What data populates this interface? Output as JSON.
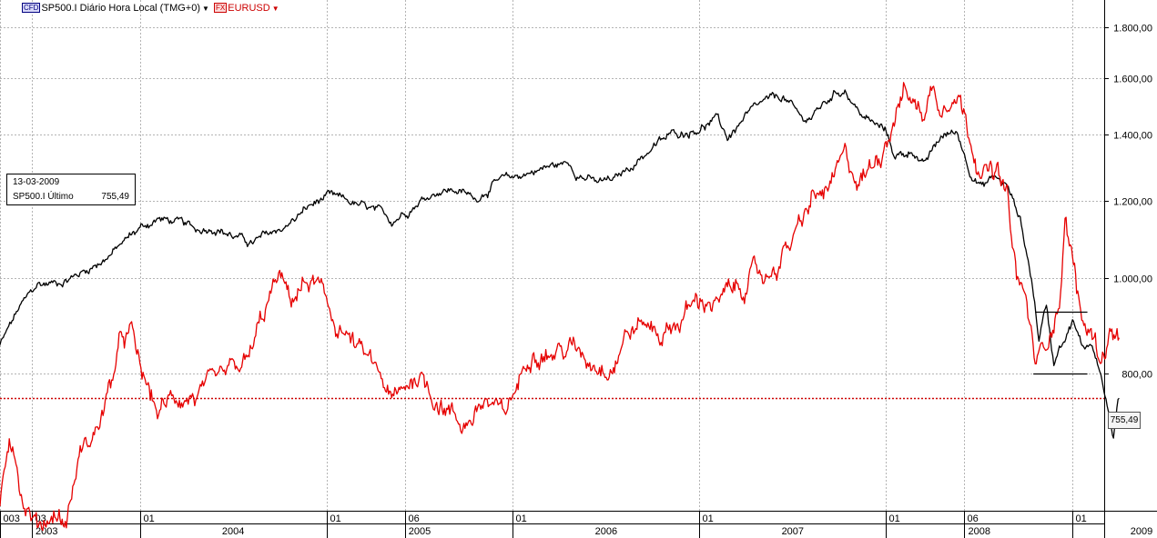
{
  "legend": {
    "series1": {
      "badge": "CFD",
      "label": "SP500.I Diário Hora Local (TMG+0)",
      "color": "#000000"
    },
    "series2": {
      "badge": "FX",
      "label": "EURUSD",
      "color": "#e00000"
    }
  },
  "infobox": {
    "date": "13-03-2009",
    "label": "SP500.I Último",
    "value": "755,49"
  },
  "price_tag": "755,49",
  "colors": {
    "sp500": "#000000",
    "eurusd": "#e60000",
    "grid": "#b4b4b4",
    "ref_line": "#cc0000"
  },
  "chart_data": {
    "type": "line",
    "y_axis": {
      "scale": "log",
      "range": [
        580,
        1920
      ],
      "ticks": [
        {
          "v": 800,
          "label": "800,00"
        },
        {
          "v": 1000,
          "label": "1.000,00"
        },
        {
          "v": 1200,
          "label": "1.200,00"
        },
        {
          "v": 1400,
          "label": "1.400,00"
        },
        {
          "v": 1600,
          "label": "1.600,00"
        },
        {
          "v": 1800,
          "label": "1.800,00"
        }
      ]
    },
    "x_axis": {
      "range": [
        2003.25,
        2009.17
      ],
      "month_ticks": [
        {
          "t": 2003.25,
          "label": "003"
        },
        {
          "t": 2003.42,
          "label": "03"
        },
        {
          "t": 2004.0,
          "label": "01"
        },
        {
          "t": 2005.0,
          "label": "01"
        },
        {
          "t": 2005.42,
          "label": "06"
        },
        {
          "t": 2006.0,
          "label": "01"
        },
        {
          "t": 2007.0,
          "label": "01"
        },
        {
          "t": 2008.0,
          "label": "01"
        },
        {
          "t": 2008.42,
          "label": "06"
        },
        {
          "t": 2009.0,
          "label": "01"
        }
      ],
      "year_labels": [
        {
          "t": 2003.5,
          "label": "2003"
        },
        {
          "t": 2004.5,
          "label": "2004"
        },
        {
          "t": 2005.5,
          "label": "2005"
        },
        {
          "t": 2006.5,
          "label": "2006"
        },
        {
          "t": 2007.5,
          "label": "2007"
        },
        {
          "t": 2008.5,
          "label": "2008"
        },
        {
          "t": 2009.37,
          "label": "2009"
        }
      ]
    },
    "grid": true,
    "reference_line": {
      "value": 755.49,
      "style": "dotted"
    },
    "series": [
      {
        "name": "SP500.I",
        "points": [
          [
            2003.25,
            855
          ],
          [
            2003.35,
            930
          ],
          [
            2003.45,
            985
          ],
          [
            2003.55,
            990
          ],
          [
            2003.65,
            1005
          ],
          [
            2003.75,
            1030
          ],
          [
            2003.85,
            1060
          ],
          [
            2003.95,
            1105
          ],
          [
            2004.0,
            1125
          ],
          [
            2004.1,
            1150
          ],
          [
            2004.2,
            1140
          ],
          [
            2004.3,
            1120
          ],
          [
            2004.4,
            1130
          ],
          [
            2004.5,
            1105
          ],
          [
            2004.6,
            1085
          ],
          [
            2004.7,
            1110
          ],
          [
            2004.8,
            1135
          ],
          [
            2004.9,
            1180
          ],
          [
            2005.0,
            1210
          ],
          [
            2005.1,
            1200
          ],
          [
            2005.2,
            1180
          ],
          [
            2005.3,
            1160
          ],
          [
            2005.35,
            1145
          ],
          [
            2005.5,
            1200
          ],
          [
            2005.6,
            1230
          ],
          [
            2005.7,
            1230
          ],
          [
            2005.8,
            1205
          ],
          [
            2005.9,
            1250
          ],
          [
            2006.0,
            1265
          ],
          [
            2006.1,
            1285
          ],
          [
            2006.2,
            1300
          ],
          [
            2006.3,
            1310
          ],
          [
            2006.35,
            1280
          ],
          [
            2006.45,
            1250
          ],
          [
            2006.55,
            1260
          ],
          [
            2006.65,
            1310
          ],
          [
            2006.75,
            1360
          ],
          [
            2006.85,
            1400
          ],
          [
            2006.95,
            1415
          ],
          [
            2007.0,
            1425
          ],
          [
            2007.1,
            1450
          ],
          [
            2007.15,
            1390
          ],
          [
            2007.25,
            1460
          ],
          [
            2007.35,
            1510
          ],
          [
            2007.45,
            1530
          ],
          [
            2007.55,
            1450
          ],
          [
            2007.6,
            1460
          ],
          [
            2007.72,
            1540
          ],
          [
            2007.78,
            1560
          ],
          [
            2007.85,
            1480
          ],
          [
            2007.9,
            1450
          ],
          [
            2008.0,
            1410
          ],
          [
            2008.05,
            1330
          ],
          [
            2008.15,
            1350
          ],
          [
            2008.2,
            1300
          ],
          [
            2008.3,
            1395
          ],
          [
            2008.38,
            1410
          ],
          [
            2008.45,
            1290
          ],
          [
            2008.52,
            1240
          ],
          [
            2008.58,
            1270
          ],
          [
            2008.65,
            1240
          ],
          [
            2008.72,
            1150
          ],
          [
            2008.78,
            1000
          ],
          [
            2008.82,
            870
          ],
          [
            2008.86,
            940
          ],
          [
            2008.9,
            820
          ],
          [
            2008.93,
            860
          ],
          [
            2008.97,
            880
          ],
          [
            2009.0,
            910
          ],
          [
            2009.05,
            850
          ],
          [
            2009.1,
            860
          ],
          [
            2009.14,
            820
          ],
          [
            2009.18,
            750
          ],
          [
            2009.22,
            690
          ],
          [
            2009.25,
            755
          ]
        ]
      },
      {
        "name": "EURUSD",
        "points": [
          [
            2003.25,
            590
          ],
          [
            2003.3,
            700
          ],
          [
            2003.33,
            680
          ],
          [
            2003.37,
            600
          ],
          [
            2003.45,
            560
          ],
          [
            2003.55,
            580
          ],
          [
            2003.6,
            560
          ],
          [
            2003.68,
            665
          ],
          [
            2003.75,
            690
          ],
          [
            2003.82,
            750
          ],
          [
            2003.9,
            860
          ],
          [
            2003.95,
            880
          ],
          [
            2004.0,
            810
          ],
          [
            2004.05,
            760
          ],
          [
            2004.1,
            730
          ],
          [
            2004.2,
            760
          ],
          [
            2004.3,
            760
          ],
          [
            2004.4,
            770
          ],
          [
            2004.5,
            800
          ],
          [
            2004.58,
            820
          ],
          [
            2004.65,
            900
          ],
          [
            2004.72,
            980
          ],
          [
            2004.75,
            1000
          ],
          [
            2004.8,
            950
          ],
          [
            2004.9,
            990
          ],
          [
            2004.95,
            985
          ],
          [
            2005.0,
            930
          ],
          [
            2005.05,
            900
          ],
          [
            2005.1,
            880
          ],
          [
            2005.2,
            830
          ],
          [
            2005.3,
            790
          ],
          [
            2005.35,
            745
          ],
          [
            2005.4,
            760
          ],
          [
            2005.45,
            790
          ],
          [
            2005.5,
            800
          ],
          [
            2005.55,
            770
          ],
          [
            2005.65,
            740
          ],
          [
            2005.72,
            710
          ],
          [
            2005.8,
            730
          ],
          [
            2005.85,
            750
          ],
          [
            2005.95,
            720
          ],
          [
            2006.0,
            760
          ],
          [
            2006.05,
            800
          ],
          [
            2006.1,
            860
          ],
          [
            2006.2,
            840
          ],
          [
            2006.3,
            850
          ],
          [
            2006.4,
            830
          ],
          [
            2006.5,
            820
          ],
          [
            2006.55,
            830
          ],
          [
            2006.6,
            880
          ],
          [
            2006.7,
            900
          ],
          [
            2006.8,
            880
          ],
          [
            2006.9,
            910
          ],
          [
            2006.95,
            935
          ],
          [
            2007.05,
            955
          ],
          [
            2007.1,
            940
          ],
          [
            2007.15,
            960
          ],
          [
            2007.2,
            975
          ],
          [
            2007.3,
            1010
          ],
          [
            2007.35,
            1000
          ],
          [
            2007.45,
            1060
          ],
          [
            2007.55,
            1130
          ],
          [
            2007.6,
            1200
          ],
          [
            2007.7,
            1230
          ],
          [
            2007.75,
            1290
          ],
          [
            2007.78,
            1320
          ],
          [
            2007.85,
            1260
          ],
          [
            2007.9,
            1280
          ],
          [
            2007.95,
            1330
          ],
          [
            2008.0,
            1390
          ],
          [
            2008.05,
            1490
          ],
          [
            2008.1,
            1560
          ],
          [
            2008.15,
            1500
          ],
          [
            2008.2,
            1480
          ],
          [
            2008.25,
            1560
          ],
          [
            2008.3,
            1500
          ],
          [
            2008.35,
            1570
          ],
          [
            2008.4,
            1520
          ],
          [
            2008.45,
            1400
          ],
          [
            2008.5,
            1320
          ],
          [
            2008.55,
            1280
          ],
          [
            2008.6,
            1270
          ],
          [
            2008.65,
            1200
          ],
          [
            2008.7,
            1000
          ],
          [
            2008.75,
            950
          ],
          [
            2008.8,
            820
          ],
          [
            2008.85,
            850
          ],
          [
            2008.9,
            920
          ],
          [
            2008.93,
            950
          ],
          [
            2008.96,
            1150
          ],
          [
            2009.0,
            1050
          ],
          [
            2009.05,
            900
          ],
          [
            2009.1,
            880
          ],
          [
            2009.15,
            830
          ],
          [
            2009.2,
            880
          ],
          [
            2009.25,
            870
          ]
        ]
      }
    ],
    "horizontal_lines": [
      {
        "value": 925,
        "t_start": 2008.8,
        "t_end": 2009.08
      },
      {
        "value": 800,
        "t_start": 2008.79,
        "t_end": 2009.08
      }
    ]
  }
}
